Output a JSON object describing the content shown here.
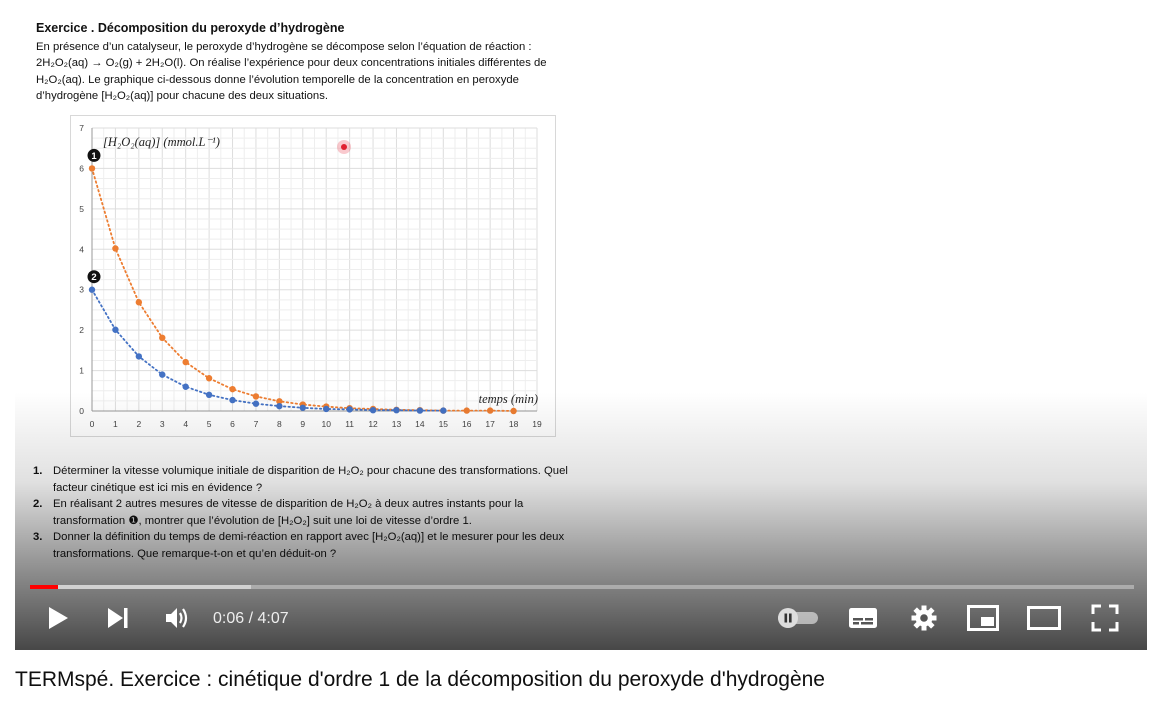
{
  "document": {
    "title": "Exercice   . Décomposition du peroxyde d’hydrogène",
    "intro_line1": "En présence d’un catalyseur, le peroxyde d’hydrogène se décompose selon l’équation de réaction :",
    "intro_line2": "2H₂O₂(aq) → O₂(g) + 2H₂O(l). On réalise l’expérience pour deux concentrations initiales différentes de",
    "intro_line3": "H₂O₂(aq). Le graphique ci-dessous donne l’évolution temporelle de la concentration en peroxyde",
    "intro_line4": "d’hydrogène [H₂O₂(aq)] pour chacune des deux situations.",
    "questions": [
      {
        "num": "1.",
        "text": "Déterminer la vitesse volumique initiale de disparition de H₂O₂ pour chacune des transformations. Quel facteur cinétique est ici mis en évidence ?"
      },
      {
        "num": "2.",
        "text": "En réalisant 2 autres mesures de vitesse de disparition de H₂O₂ à deux autres instants pour la transformation ❶, montrer que l’évolution de [H₂O₂] suit une loi de vitesse d’ordre 1."
      },
      {
        "num": "3.",
        "text": "Donner la définition du temps de demi-réaction en rapport avec [H₂O₂(aq)] et le mesurer pour les deux transformations. Que remarque-t-on et qu’en déduit-on ?"
      }
    ]
  },
  "chart_data": {
    "type": "scatter",
    "ylabel": "[H₂O₂(aq)] (mmol.L⁻¹)",
    "xlabel": "temps (min)",
    "xlim": [
      0,
      19
    ],
    "ylim": [
      0,
      7
    ],
    "x_ticks": [
      "0",
      "1",
      "2",
      "3",
      "4",
      "5",
      "6",
      "7",
      "8",
      "9",
      "10",
      "11",
      "12",
      "13",
      "14",
      "15",
      "16",
      "17",
      "18",
      "19"
    ],
    "y_ticks": [
      "0",
      "1",
      "2",
      "3",
      "4",
      "5",
      "6",
      "7"
    ],
    "grid": true,
    "series": [
      {
        "name": "❶",
        "color": "#ed7d31",
        "x": [
          0,
          1,
          2,
          3,
          4,
          5,
          6,
          7,
          8,
          9,
          10,
          11,
          12,
          13,
          14,
          15,
          16,
          17,
          18
        ],
        "y": [
          6.0,
          4.02,
          2.69,
          1.81,
          1.21,
          0.81,
          0.54,
          0.36,
          0.24,
          0.16,
          0.11,
          0.07,
          0.05,
          0.03,
          0.02,
          0.01,
          0.01,
          0.01,
          0.0
        ]
      },
      {
        "name": "❷",
        "color": "#4472c4",
        "x": [
          0,
          1,
          2,
          3,
          4,
          5,
          6,
          7,
          8,
          9,
          10,
          11,
          12,
          13,
          14,
          15
        ],
        "y": [
          3.0,
          2.01,
          1.35,
          0.9,
          0.6,
          0.4,
          0.27,
          0.18,
          0.12,
          0.08,
          0.05,
          0.04,
          0.02,
          0.02,
          0.01,
          0.01
        ]
      }
    ]
  },
  "player": {
    "current_time": "0:06",
    "separator": " / ",
    "duration": "4:07",
    "progress": 0.025,
    "buffered": 0.2,
    "accent": "#ff0000",
    "icons": [
      "play-icon",
      "next-icon",
      "volume-icon",
      "autoplay-toggle-icon",
      "subtitles-icon",
      "settings-icon",
      "miniplayer-icon",
      "theater-icon",
      "fullscreen-icon"
    ]
  },
  "video_title": "TERMspé. Exercice : cinétique d'ordre 1 de la décomposition du peroxyde d'hydrogène"
}
